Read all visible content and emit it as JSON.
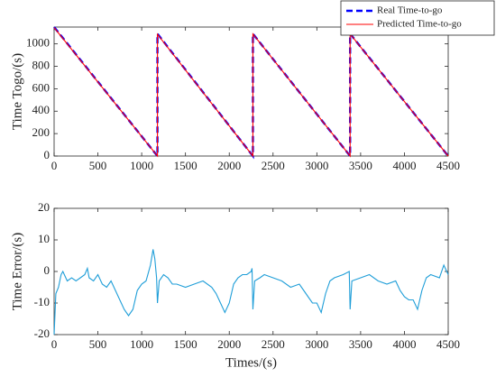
{
  "chart_data": [
    {
      "type": "line",
      "ylabel": "Time Togo/(s)",
      "xlim": [
        0,
        4500
      ],
      "xticks": [
        0,
        500,
        1000,
        1500,
        2000,
        2500,
        3000,
        3500,
        4000,
        4500
      ],
      "ylim": [
        0,
        1150
      ],
      "yticks": [
        0,
        200,
        400,
        600,
        800,
        1000
      ],
      "legend": "top-right",
      "series": [
        {
          "name": "Real Time-to-go",
          "color": "#0000ff",
          "dash": true,
          "x": [
            0,
            1180,
            1180,
            2270,
            2270,
            3380,
            3380,
            4500
          ],
          "values": [
            1150,
            0,
            1090,
            0,
            1090,
            0,
            1090,
            0
          ]
        },
        {
          "name": "Predicted Time-to-go",
          "color": "#ff0000",
          "dash": false,
          "x": [
            0,
            1180,
            1180,
            2270,
            2270,
            3380,
            3380,
            4500
          ],
          "values": [
            1145,
            0,
            1085,
            0,
            1088,
            0,
            1088,
            0
          ]
        }
      ]
    },
    {
      "type": "line",
      "xlabel": "Times/(s)",
      "ylabel": "Time Error/(s)",
      "xlim": [
        0,
        4500
      ],
      "xticks": [
        0,
        500,
        1000,
        1500,
        2000,
        2500,
        3000,
        3500,
        4000,
        4500
      ],
      "ylim": [
        -20,
        20
      ],
      "yticks": [
        -20,
        -10,
        0,
        10,
        20
      ],
      "series": [
        {
          "name": "Time Error",
          "color": "#1f9ed8",
          "dash": false,
          "x": [
            0,
            20,
            50,
            80,
            100,
            150,
            200,
            250,
            300,
            350,
            380,
            400,
            450,
            500,
            550,
            600,
            650,
            700,
            750,
            800,
            850,
            900,
            950,
            1000,
            1050,
            1100,
            1130,
            1150,
            1170,
            1180,
            1200,
            1250,
            1300,
            1350,
            1400,
            1500,
            1600,
            1700,
            1800,
            1850,
            1900,
            1950,
            2000,
            2050,
            2100,
            2150,
            2200,
            2250,
            2260,
            2270,
            2290,
            2350,
            2400,
            2500,
            2600,
            2700,
            2800,
            2850,
            2900,
            2950,
            3000,
            3050,
            3100,
            3150,
            3200,
            3300,
            3370,
            3380,
            3400,
            3500,
            3600,
            3700,
            3800,
            3900,
            3950,
            4000,
            4050,
            4100,
            4150,
            4200,
            4250,
            4300,
            4400,
            4450,
            4500
          ],
          "values": [
            -20,
            -7,
            -5,
            -1,
            0,
            -3,
            -2,
            -3,
            -2,
            -1,
            1,
            -2,
            -3,
            -1,
            -4,
            -5,
            -3,
            -6,
            -9,
            -12,
            -14,
            -12,
            -6,
            -4,
            -3,
            2,
            7,
            4,
            -2,
            -10,
            -3,
            -1,
            -2,
            -4,
            -4,
            -5,
            -4,
            -3,
            -5,
            -7,
            -10,
            -13,
            -10,
            -4,
            -2,
            -1,
            -1,
            0,
            1,
            -12,
            -3,
            -2,
            -1,
            -2,
            -3,
            -5,
            -4,
            -6,
            -8,
            -10,
            -10,
            -13,
            -7,
            -3,
            -2,
            -1,
            0,
            -12,
            -3,
            -2,
            -1,
            -3,
            -4,
            -3,
            -6,
            -8,
            -9,
            -9,
            -12,
            -6,
            -2,
            -1,
            -2,
            2,
            -1
          ]
        }
      ]
    }
  ]
}
